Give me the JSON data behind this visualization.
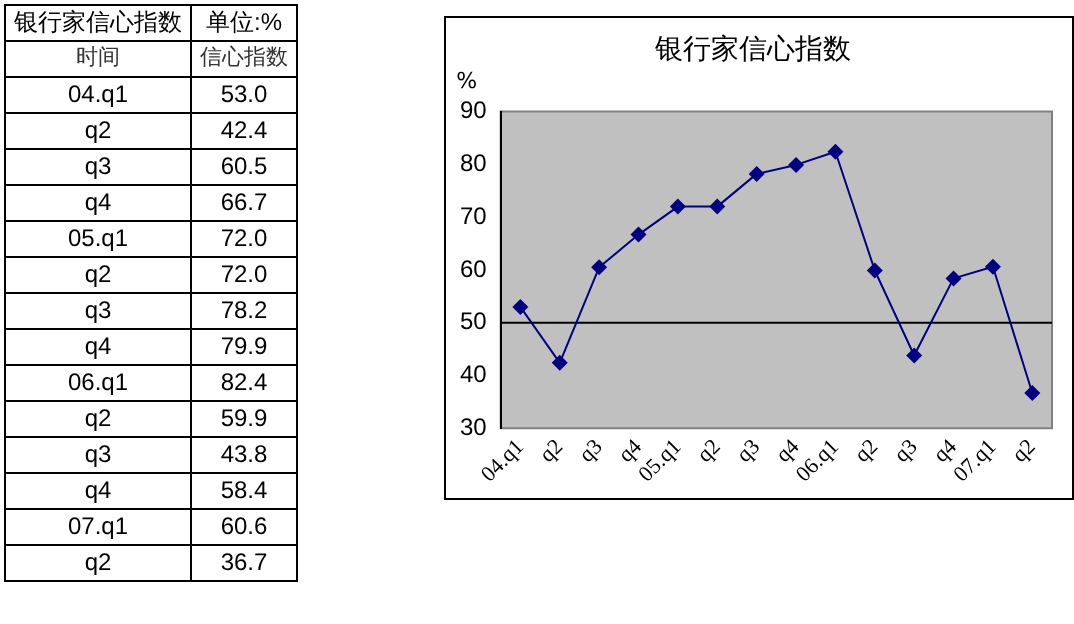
{
  "chart_data": {
    "type": "line",
    "title": "银行家信心指数",
    "ylabel": "%",
    "categories": [
      "04.q1",
      "q2",
      "q3",
      "q4",
      "05.q1",
      "q2",
      "q3",
      "q4",
      "06.q1",
      "q2",
      "q3",
      "q4",
      "07.q1",
      "q2"
    ],
    "series": [
      {
        "color": "#000080",
        "values": [
          53.0,
          42.4,
          60.5,
          66.7,
          72.0,
          72.0,
          78.2,
          79.9,
          82.4,
          59.9,
          43.8,
          58.4,
          60.6,
          36.7
        ]
      }
    ],
    "ylim": [
      30,
      90
    ],
    "yticks": [
      30,
      40,
      50,
      60,
      70,
      80,
      90
    ],
    "ref_lines": [
      {
        "axis": "y",
        "value": 50,
        "color": "#000000"
      }
    ],
    "annotations": [
      "银行家信心指数",
      "单位:%",
      "时间",
      "信心指数",
      "53.0",
      "42.4",
      "60.5",
      "66.7",
      "72.0",
      "72.0",
      "78.2",
      "79.9",
      "82.4",
      "59.9",
      "43.8",
      "58.4",
      "60.6",
      "36.7"
    ],
    "marker": "diamond",
    "line_style": "solid",
    "grid": false,
    "legend": false
  }
}
